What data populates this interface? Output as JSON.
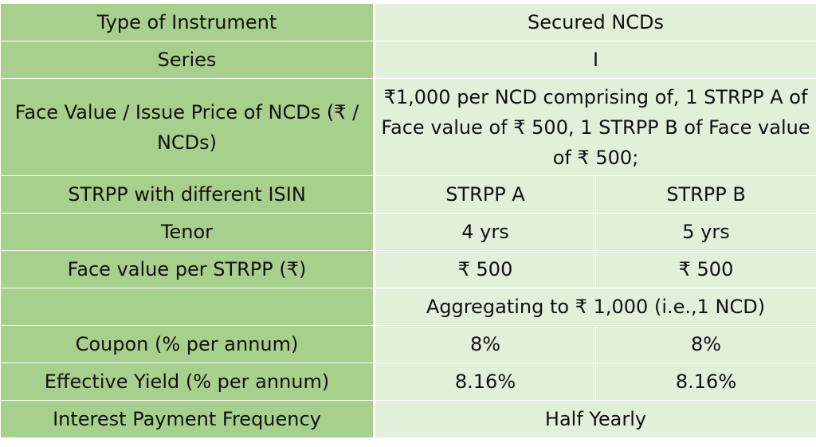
{
  "rows": {
    "instrument": {
      "label": "Type of Instrument",
      "value": "Secured NCDs"
    },
    "series": {
      "label": "Series",
      "value": "I"
    },
    "face_value": {
      "label": "Face Value / Issue Price of NCDs (₹ / NCDs)",
      "value": "₹1,000 per NCD comprising of, 1 STRPP A of Face value of ₹ 500, 1 STRPP B of Face value of ₹ 500;"
    },
    "strpp_isin": {
      "label": "STRPP with different ISIN",
      "a": "STRPP A",
      "b": "STRPP B"
    },
    "tenor": {
      "label": "Tenor",
      "a": "4 yrs",
      "b": "5 yrs"
    },
    "face_value_per_strpp": {
      "label": "Face value per STRPP (₹)",
      "a": "₹ 500",
      "b": "₹ 500"
    },
    "aggregate": {
      "label": "",
      "value": "Aggregating to ₹ 1,000 (i.e.,1 NCD)"
    },
    "coupon": {
      "label": "Coupon (% per annum)",
      "a": "8%",
      "b": "8%"
    },
    "effective_yield": {
      "label": "Effective Yield (% per annum)",
      "a": "8.16%",
      "b": "8.16%"
    },
    "interest_frequency": {
      "label": "Interest Payment Frequency",
      "value": "Half Yearly"
    }
  },
  "colors": {
    "label_cell": "#a8d08d",
    "value_cell": "#e2efd9",
    "border": "#ffffff"
  }
}
